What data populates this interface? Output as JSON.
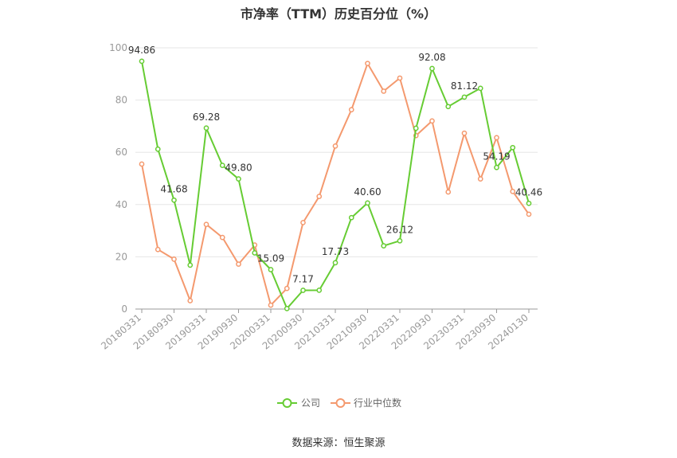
{
  "title": "市净率（TTM）历史百分位（%）",
  "source": "数据来源：恒生聚源",
  "colors": {
    "company": "#66cc33",
    "industry": "#f4996e",
    "grid": "#e6e6e6",
    "axis": "#999999"
  },
  "chart_data": {
    "type": "line",
    "ylim": [
      0,
      100
    ],
    "yticks": [
      0,
      20,
      40,
      60,
      80,
      100
    ],
    "xtick_labels": [
      "20180331",
      "20180930",
      "20190331",
      "20190930",
      "20200331",
      "20200930",
      "20210331",
      "20210930",
      "20220331",
      "20220930",
      "20230331",
      "20230930",
      "20240130"
    ],
    "legend": {
      "placement": "bottom-center"
    },
    "series": [
      {
        "name": "公司",
        "values": [
          94.86,
          61.2,
          41.68,
          16.8,
          69.28,
          55.0,
          49.8,
          21.5,
          15.09,
          0.2,
          7.17,
          7.2,
          17.73,
          35.0,
          40.6,
          24.2,
          26.12,
          69.2,
          92.08,
          77.5,
          81.12,
          84.5,
          54.19,
          61.8,
          40.46
        ]
      },
      {
        "name": "行业中位数",
        "values": [
          55.5,
          22.8,
          19.1,
          3.2,
          32.4,
          27.4,
          17.2,
          24.5,
          1.5,
          7.9,
          33.1,
          43.1,
          62.4,
          76.3,
          94.0,
          83.4,
          88.4,
          66.4,
          72.0,
          44.8,
          67.3,
          49.8,
          65.6,
          45.0,
          36.3
        ]
      }
    ],
    "data_labels": [
      {
        "series": 0,
        "index": 0,
        "text": "94.86"
      },
      {
        "series": 0,
        "index": 2,
        "text": "41.68"
      },
      {
        "series": 0,
        "index": 4,
        "text": "69.28"
      },
      {
        "series": 0,
        "index": 6,
        "text": "49.80"
      },
      {
        "series": 0,
        "index": 8,
        "text": "15.09"
      },
      {
        "series": 0,
        "index": 10,
        "text": "7.17"
      },
      {
        "series": 0,
        "index": 12,
        "text": "17.73"
      },
      {
        "series": 0,
        "index": 14,
        "text": "40.60"
      },
      {
        "series": 0,
        "index": 16,
        "text": "26.12"
      },
      {
        "series": 0,
        "index": 18,
        "text": "92.08"
      },
      {
        "series": 0,
        "index": 20,
        "text": "81.12"
      },
      {
        "series": 0,
        "index": 22,
        "text": "54.19"
      },
      {
        "series": 0,
        "index": 24,
        "text": "40.46"
      }
    ]
  }
}
